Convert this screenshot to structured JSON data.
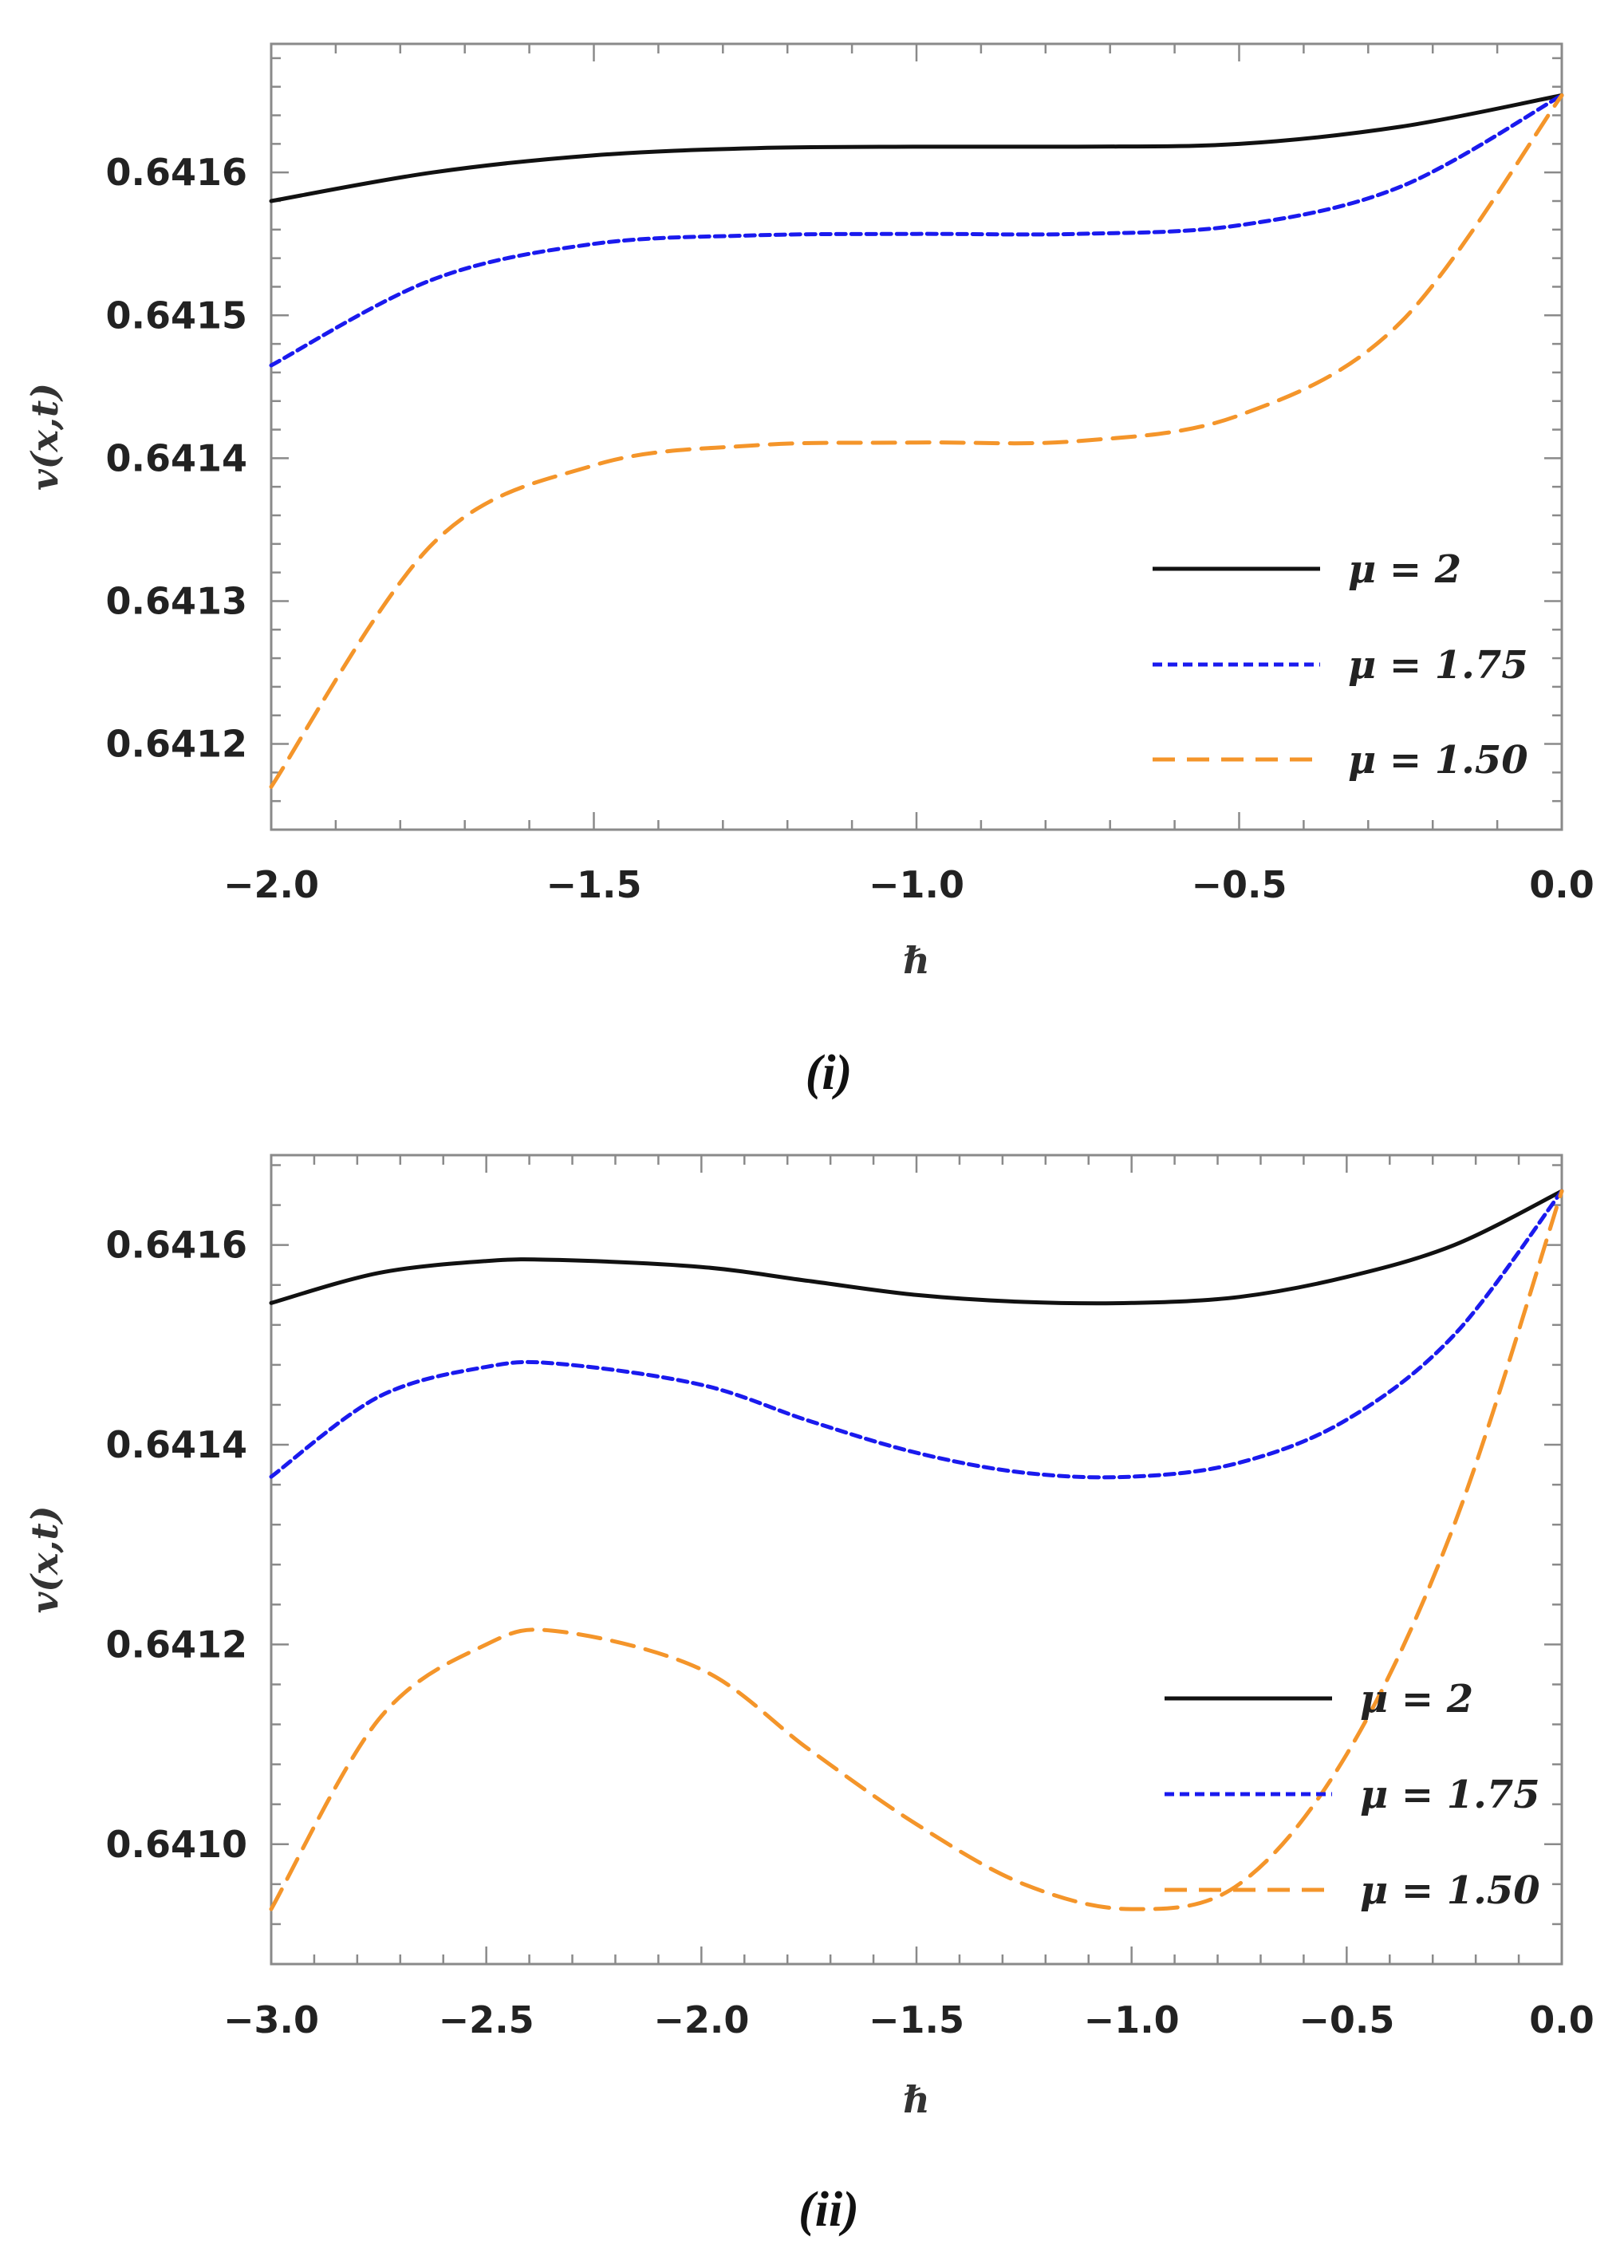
{
  "chart_data": [
    {
      "type": "line",
      "panel_label": "(i)",
      "xlabel": "ℏ",
      "ylabel": "v(x,t)",
      "xlim": [
        -2.0,
        0.0
      ],
      "ylim": [
        0.64114,
        0.64169
      ],
      "xticks": [
        -2.0,
        -1.5,
        -1.0,
        -0.5,
        0.0
      ],
      "xtick_labels": [
        "−2.0",
        "−1.5",
        "−1.0",
        "−0.5",
        "0.0"
      ],
      "yticks": [
        0.6412,
        0.6413,
        0.6414,
        0.6415,
        0.6416
      ],
      "ytick_labels": [
        "0.6412",
        "0.6413",
        "0.6414",
        "0.6415",
        "0.6416"
      ],
      "legend_position": "lower-right",
      "series": [
        {
          "name": "μ = 2",
          "color": "#111111",
          "dash": "solid",
          "x": [
            -2.0,
            -1.75,
            -1.5,
            -1.25,
            -1.0,
            -0.75,
            -0.5,
            -0.25,
            0.0
          ],
          "y": [
            0.64158,
            0.6416,
            0.641612,
            0.641617,
            0.641618,
            0.641618,
            0.64162,
            0.641632,
            0.641654
          ]
        },
        {
          "name": "μ = 1.75",
          "color": "#1a1aee",
          "dash": "short",
          "x": [
            -2.0,
            -1.75,
            -1.5,
            -1.25,
            -1.0,
            -0.75,
            -0.5,
            -0.25,
            0.0
          ],
          "y": [
            0.641465,
            0.641525,
            0.64155,
            0.641556,
            0.641557,
            0.641557,
            0.641563,
            0.64159,
            0.641654
          ]
        },
        {
          "name": "μ = 1.50",
          "color": "#f4952a",
          "dash": "long",
          "x": [
            -2.0,
            -1.75,
            -1.5,
            -1.25,
            -1.0,
            -0.75,
            -0.5,
            -0.25,
            0.0
          ],
          "y": [
            0.64117,
            0.64134,
            0.641395,
            0.641409,
            0.641411,
            0.641412,
            0.64143,
            0.641495,
            0.641654
          ]
        }
      ]
    },
    {
      "type": "line",
      "panel_label": "(ii)",
      "xlabel": "ℏ",
      "ylabel": "v(x,t)",
      "xlim": [
        -3.0,
        0.0
      ],
      "ylim": [
        0.64088,
        0.64169
      ],
      "xticks": [
        -3.0,
        -2.5,
        -2.0,
        -1.5,
        -1.0,
        -0.5,
        0.0
      ],
      "xtick_labels": [
        "−3.0",
        "−2.5",
        "−2.0",
        "−1.5",
        "−1.0",
        "−0.5",
        "0.0"
      ],
      "yticks": [
        0.641,
        0.6412,
        0.6414,
        0.6416
      ],
      "ytick_labels": [
        "0.6410",
        "0.6412",
        "0.6414",
        "0.6416"
      ],
      "legend_position": "lower-right",
      "series": [
        {
          "name": "μ = 2",
          "color": "#111111",
          "dash": "solid",
          "x": [
            -3.0,
            -2.75,
            -2.5,
            -2.33,
            -2.0,
            -1.75,
            -1.5,
            -1.25,
            -1.0,
            -0.75,
            -0.5,
            -0.25,
            0.0
          ],
          "y": [
            0.641542,
            0.641572,
            0.641584,
            0.641585,
            0.641578,
            0.641564,
            0.64155,
            0.641543,
            0.641542,
            0.641548,
            0.641568,
            0.6416,
            0.641654
          ]
        },
        {
          "name": "μ = 1.75",
          "color": "#1a1aee",
          "dash": "short",
          "x": [
            -3.0,
            -2.75,
            -2.5,
            -2.33,
            -2.0,
            -1.75,
            -1.5,
            -1.25,
            -1.0,
            -0.75,
            -0.5,
            -0.25,
            0.0
          ],
          "y": [
            0.641368,
            0.641448,
            0.641478,
            0.641481,
            0.64146,
            0.641424,
            0.641392,
            0.641372,
            0.641368,
            0.641382,
            0.641425,
            0.64151,
            0.641654
          ]
        },
        {
          "name": "μ = 1.50",
          "color": "#f4952a",
          "dash": "long",
          "x": [
            -3.0,
            -2.75,
            -2.5,
            -2.33,
            -2.0,
            -1.75,
            -1.5,
            -1.25,
            -1.0,
            -0.75,
            -0.5,
            -0.25,
            0.0
          ],
          "y": [
            0.640935,
            0.641125,
            0.6412,
            0.641213,
            0.641175,
            0.641095,
            0.64102,
            0.64096,
            0.640935,
            0.64096,
            0.64109,
            0.64132,
            0.641654
          ]
        }
      ]
    }
  ]
}
